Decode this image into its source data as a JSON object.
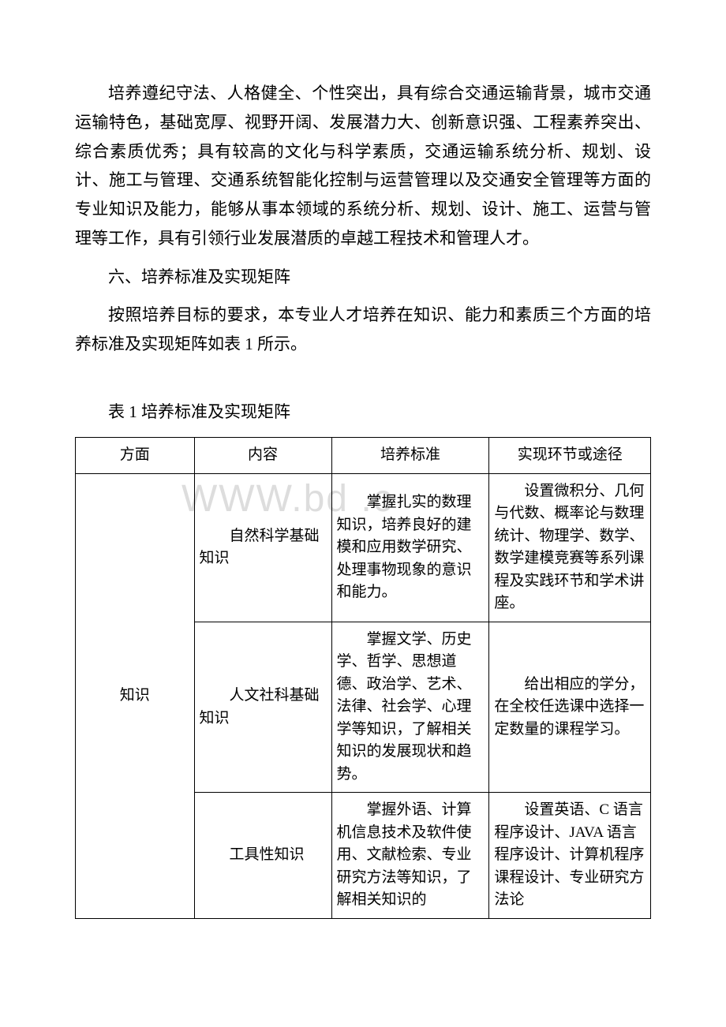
{
  "watermark": "WWW.bd    .c",
  "paragraphs": {
    "p1": "培养遵纪守法、人格健全、个性突出，具有综合交通运输背景，城市交通运输特色，基础宽厚、视野开阔、发展潜力大、创新意识强、工程素养突出、综合素质优秀；具有较高的文化与科学素质，交通运输系统分析、规划、设计、施工与管理、交通系统智能化控制与运营管理以及交通安全管理等方面的专业知识及能力，能够从事本领域的系统分析、规划、设计、施工、运营与管理等工作，具有引领行业发展潜质的卓越工程技术和管理人才。",
    "p2": "六、培养标准及实现矩阵",
    "p3": "按照培养目标的要求，本专业人才培养在知识、能力和素质三个方面的培养标准及实现矩阵如表 1 所示。"
  },
  "table": {
    "caption": "表 1 培养标准及实现矩阵",
    "headers": [
      "方面",
      "内容",
      "培养标准",
      "实现环节或途径"
    ],
    "rowgroup_label": "知识",
    "rows": [
      {
        "content": "自然科学基础知识",
        "standard": "掌握扎实的数理知识，培养良好的建模和应用数学研究、处理事物现象的意识和能力。",
        "path": "设置微积分、几何与代数、概率论与数理统计、物理学、数学、数学建模竞赛等系列课程及实践环节和学术讲座。"
      },
      {
        "content": "人文社科基础知识",
        "standard": "掌握文学、历史学、哲学、思想道德、政治学、艺术、法律、社会学、心理学等知识，了解相关知识的发展现状和趋势。",
        "path": "给出相应的学分，在全校任选课中选择一定数量的课程学习。"
      },
      {
        "content": "工具性知识",
        "standard": "掌握外语、计算机信息技术及软件使用、文献检索、专业研究方法等知识，了解相关知识的",
        "path": "设置英语、C 语言程序设计、JAVA 语言程序设计、计算机程序课程设计、专业研究方法论"
      }
    ]
  }
}
